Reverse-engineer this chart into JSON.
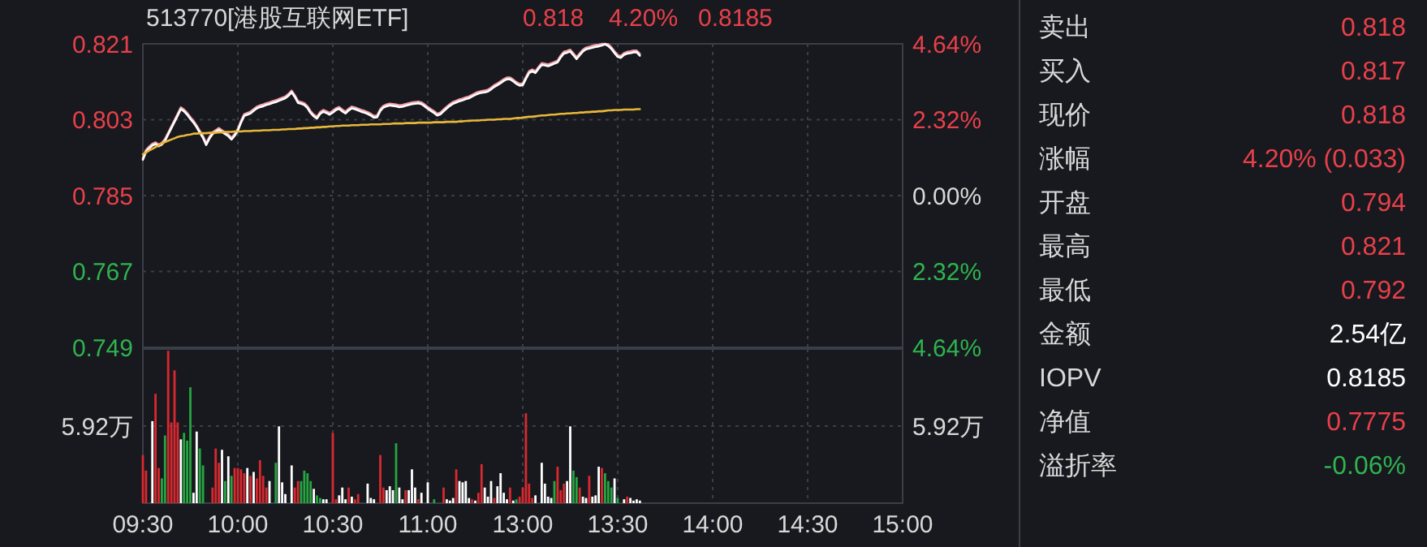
{
  "chart_data": [
    {
      "type": "line",
      "title": "513770[港股互联网ETF]",
      "annotations": [
        "0.818",
        "4.20%",
        "0.8185"
      ],
      "categories": [
        null,
        null,
        null,
        null,
        null,
        null,
        null,
        null,
        null,
        null,
        null,
        null,
        null,
        null,
        null,
        null,
        null,
        null,
        null,
        null,
        null,
        null,
        null,
        null,
        null,
        null,
        null,
        null,
        null,
        null,
        null,
        null,
        null,
        null,
        null,
        null,
        null,
        null,
        null,
        null,
        null,
        null,
        null,
        null,
        null,
        null,
        null,
        null,
        null,
        null,
        null,
        null,
        null,
        null,
        null,
        null,
        null,
        null,
        null,
        null,
        null,
        null,
        null,
        null,
        null,
        null,
        null,
        null,
        null,
        null,
        null,
        null,
        null,
        null,
        null,
        null,
        null,
        null,
        null,
        null,
        null,
        null,
        null,
        null,
        null,
        null,
        null,
        null,
        null,
        null,
        null,
        null,
        null,
        null,
        null,
        null,
        null,
        null,
        null,
        null,
        null,
        null,
        null,
        null,
        null,
        null,
        null,
        null,
        null,
        null,
        null,
        null,
        null,
        null,
        null,
        null,
        null,
        null,
        null,
        null,
        null,
        null,
        null,
        null,
        null,
        null,
        null,
        null,
        null,
        null,
        null,
        null,
        null,
        null,
        null,
        null,
        null,
        null,
        null,
        null,
        null,
        null,
        null,
        null,
        null,
        null,
        null,
        null,
        null,
        null,
        null,
        null,
        null,
        null,
        null,
        null,
        null,
        null,
        null,
        null,
        null,
        null,
        null,
        null,
        null,
        null,
        null,
        null,
        null,
        null,
        null,
        null,
        null,
        null,
        null,
        null,
        null,
        null,
        null,
        null,
        null,
        null,
        null,
        null,
        null,
        null,
        null,
        null,
        null,
        null,
        null,
        null,
        null,
        null,
        null,
        null,
        null,
        null,
        null,
        null,
        null,
        null,
        null,
        null,
        null,
        null,
        null,
        null,
        null,
        null,
        null,
        null,
        null,
        null,
        null,
        null,
        null,
        null,
        null,
        null,
        null,
        null,
        null,
        null,
        null,
        null,
        null,
        null,
        null,
        null,
        null,
        null,
        null,
        null,
        null,
        null,
        null,
        null,
        null,
        null,
        null
      ],
      "ylim": [
        0.749,
        0.821
      ],
      "yticks": [
        0.749,
        0.767,
        0.785,
        0.803,
        0.821
      ],
      "y2lim": [
        -4.64,
        4.64
      ],
      "y2ticks": [
        {
          "value": -4.64,
          "label": "4.64%"
        },
        {
          "value": -2.32,
          "label": "2.32%"
        },
        {
          "value": 0,
          "label": "0.00%"
        },
        {
          "value": 2.32,
          "label": "2.32%"
        },
        {
          "value": 4.64,
          "label": "4.64%"
        }
      ],
      "tick_labels": "y",
      "grid": true,
      "series": [
        {
          "color": "#f4a0a8",
          "values": [
            0.7939,
            0.7958,
            0.7966,
            0.7973,
            0.7976,
            0.7971,
            0.7975,
            0.7984,
            0.7999,
            0.8014,
            0.8029,
            0.8044,
            0.8059,
            0.8054,
            0.8046,
            0.8036,
            0.8027,
            0.8016,
            0.8003,
            0.7991,
            0.7974,
            0.7989,
            0.8,
            0.8005,
            0.801,
            0.8005,
            0.8,
            0.7995,
            0.7987,
            0.7996,
            0.8008,
            0.8027,
            0.8043,
            0.8046,
            0.8049,
            0.8055,
            0.8061,
            0.8064,
            0.8066,
            0.8069,
            0.8071,
            0.8074,
            0.8076,
            0.8079,
            0.8082,
            0.8085,
            0.8091,
            0.8099,
            0.8088,
            0.8074,
            0.8072,
            0.8069,
            0.8062,
            0.805,
            0.8042,
            0.8037,
            0.8048,
            0.8053,
            0.805,
            0.8046,
            0.8051,
            0.8057,
            0.806,
            0.8054,
            0.8049,
            0.8056,
            0.8061,
            0.8059,
            0.8056,
            0.8053,
            0.8051,
            0.8048,
            0.8044,
            0.8039,
            0.804,
            0.8055,
            0.8063,
            0.8066,
            0.8068,
            0.8067,
            0.8066,
            0.8064,
            0.8065,
            0.8067,
            0.8069,
            0.8071,
            0.8072,
            0.8073,
            0.8071,
            0.8066,
            0.806,
            0.8055,
            0.805,
            0.8044,
            0.8047,
            0.8054,
            0.8061,
            0.8067,
            0.8072,
            0.8075,
            0.8078,
            0.808,
            0.8083,
            0.8085,
            0.8089,
            0.8093,
            0.8096,
            0.8098,
            0.8099,
            0.8101,
            0.8106,
            0.8112,
            0.8116,
            0.8121,
            0.8126,
            0.813,
            0.813,
            0.8125,
            0.8119,
            0.8115,
            0.8116,
            0.8131,
            0.8145,
            0.8149,
            0.8145,
            0.8155,
            0.8164,
            0.8163,
            0.8161,
            0.8164,
            0.8167,
            0.817,
            0.8182,
            0.8191,
            0.8193,
            0.8196,
            0.8187,
            0.8178,
            0.8187,
            0.8196,
            0.8201,
            0.8203,
            0.8205,
            0.8207,
            0.8208,
            0.821,
            0.821,
            0.8209,
            0.8202,
            0.8192,
            0.8183,
            0.8181,
            0.8188,
            0.8191,
            0.8192,
            0.8194,
            0.8194,
            0.8186,
            null,
            null,
            null,
            null,
            null,
            null,
            null,
            null,
            null,
            null,
            null,
            null,
            null,
            null,
            null,
            null,
            null,
            null,
            null,
            null,
            null,
            null,
            null,
            null,
            null,
            null,
            null,
            null,
            null,
            null,
            null,
            null,
            null,
            null,
            null,
            null,
            null,
            null,
            null,
            null,
            null,
            null,
            null,
            null,
            null,
            null,
            null,
            null,
            null,
            null,
            null,
            null,
            null,
            null,
            null,
            null,
            null,
            null,
            null,
            null,
            null,
            null,
            null,
            null,
            null,
            null,
            null,
            null,
            null,
            null,
            null,
            null,
            null,
            null,
            null,
            null,
            null,
            null,
            null,
            null,
            null,
            null,
            null
          ]
        },
        {
          "color": "#ffffff",
          "values": [
            0.7935,
            0.7954,
            0.7962,
            0.7969,
            0.7972,
            0.7967,
            0.7971,
            0.798,
            0.7995,
            0.801,
            0.8025,
            0.804,
            0.8055,
            0.805,
            0.8042,
            0.8032,
            0.8023,
            0.8012,
            0.7999,
            0.7987,
            0.797,
            0.7985,
            0.7996,
            0.8001,
            0.8006,
            0.8001,
            0.7996,
            0.7991,
            0.7983,
            0.7992,
            0.8004,
            0.8023,
            0.8039,
            0.8042,
            0.8045,
            0.8051,
            0.8057,
            0.806,
            0.8062,
            0.8065,
            0.8067,
            0.807,
            0.8072,
            0.8075,
            0.8078,
            0.8081,
            0.8087,
            0.8095,
            0.8084,
            0.807,
            0.8068,
            0.8065,
            0.8058,
            0.8046,
            0.8038,
            0.8033,
            0.8044,
            0.8049,
            0.8046,
            0.8042,
            0.8047,
            0.8053,
            0.8056,
            0.805,
            0.8045,
            0.8052,
            0.8057,
            0.8055,
            0.8052,
            0.8049,
            0.8047,
            0.8044,
            0.804,
            0.8035,
            0.8036,
            0.8051,
            0.8059,
            0.8062,
            0.8064,
            0.8063,
            0.8062,
            0.806,
            0.8061,
            0.8063,
            0.8065,
            0.8067,
            0.8068,
            0.8069,
            0.8067,
            0.8062,
            0.8056,
            0.8051,
            0.8046,
            0.804,
            0.8043,
            0.805,
            0.8057,
            0.8063,
            0.8068,
            0.8071,
            0.8074,
            0.8076,
            0.8079,
            0.8081,
            0.8085,
            0.8089,
            0.8092,
            0.8094,
            0.8095,
            0.8097,
            0.8102,
            0.8108,
            0.8112,
            0.8117,
            0.8122,
            0.8126,
            0.8126,
            0.8121,
            0.8115,
            0.8111,
            0.8112,
            0.8127,
            0.8141,
            0.8145,
            0.8141,
            0.8151,
            0.816,
            0.8159,
            0.8157,
            0.816,
            0.8163,
            0.8166,
            0.8178,
            0.8187,
            0.8189,
            0.8192,
            0.8183,
            0.8174,
            0.8183,
            0.8192,
            0.8197,
            0.8199,
            0.8201,
            0.8203,
            0.8204,
            0.8206,
            0.8209,
            0.8205,
            0.8198,
            0.8188,
            0.8179,
            0.8177,
            0.8184,
            0.8187,
            0.8188,
            0.819,
            0.819,
            0.8182,
            null,
            null,
            null,
            null,
            null,
            null,
            null,
            null,
            null,
            null,
            null,
            null,
            null,
            null,
            null,
            null,
            null,
            null,
            null,
            null,
            null,
            null,
            null,
            null,
            null,
            null,
            null,
            null,
            null,
            null,
            null,
            null,
            null,
            null,
            null,
            null,
            null,
            null,
            null,
            null,
            null,
            null,
            null,
            null,
            null,
            null,
            null,
            null,
            null,
            null,
            null,
            null,
            null,
            null,
            null,
            null,
            null,
            null,
            null,
            null,
            null,
            null,
            null,
            null,
            null,
            null,
            null,
            null,
            null,
            null,
            null,
            null,
            null,
            null,
            null,
            null,
            null,
            null,
            null,
            null,
            null,
            null,
            null
          ]
        },
        {
          "color": "#e8b83a",
          "values": [
            0.7948,
            0.7952,
            0.7957,
            0.7961,
            0.7965,
            0.7969,
            0.7974,
            0.7977,
            0.798,
            0.7983,
            0.7986,
            0.7989,
            0.7991,
            0.7992,
            0.7994,
            0.7995,
            0.7997,
            0.7997,
            0.7998,
            0.7998,
            0.7998,
            0.7999,
            0.7999,
            0.7999,
            0.8,
            0.8,
            0.8001,
            0.8001,
            0.8001,
            0.8002,
            0.8002,
            0.8002,
            0.8003,
            0.8003,
            0.8003,
            0.8004,
            0.8004,
            0.8004,
            0.8005,
            0.8005,
            0.8005,
            0.8006,
            0.8006,
            0.8006,
            0.8007,
            0.8007,
            0.8008,
            0.8008,
            0.8008,
            0.8009,
            0.8009,
            0.801,
            0.801,
            0.8011,
            0.8011,
            0.8012,
            0.8012,
            0.8013,
            0.8013,
            0.8014,
            0.8014,
            0.8015,
            0.8015,
            0.8016,
            0.8016,
            0.8016,
            0.8017,
            0.8017,
            0.8017,
            0.8018,
            0.8018,
            0.8018,
            0.8019,
            0.8019,
            0.8019,
            0.8019,
            0.802,
            0.802,
            0.802,
            0.8021,
            0.8021,
            0.8021,
            0.8021,
            0.8022,
            0.8022,
            0.8022,
            0.8022,
            0.8023,
            0.8023,
            0.8023,
            0.8023,
            0.8023,
            0.8024,
            0.8024,
            0.8024,
            0.8024,
            0.8025,
            0.8025,
            0.8025,
            0.8025,
            0.8026,
            0.8026,
            0.8027,
            0.8027,
            0.8028,
            0.8028,
            0.8028,
            0.8029,
            0.8029,
            0.803,
            0.803,
            0.803,
            0.8031,
            0.8031,
            0.8032,
            0.8032,
            0.8032,
            0.8033,
            0.8034,
            0.8034,
            0.8035,
            0.8036,
            0.8037,
            0.8037,
            0.8038,
            0.8039,
            0.804,
            0.804,
            0.8041,
            0.8042,
            0.8042,
            0.8043,
            0.8044,
            0.8044,
            0.8045,
            0.8045,
            0.8046,
            0.8046,
            0.8047,
            0.8047,
            0.8048,
            0.8048,
            0.8049,
            0.8049,
            0.805,
            0.805,
            0.8051,
            0.8052,
            0.8052,
            0.8053,
            0.8053,
            0.8053,
            0.8054,
            0.8054,
            0.8054,
            0.8054,
            0.8055,
            0.8055,
            null,
            null,
            null,
            null,
            null,
            null,
            null,
            null,
            null,
            null,
            null,
            null,
            null,
            null,
            null,
            null,
            null,
            null,
            null,
            null,
            null,
            null,
            null,
            null,
            null,
            null,
            null,
            null,
            null,
            null,
            null,
            null,
            null,
            null,
            null,
            null,
            null,
            null,
            null,
            null,
            null,
            null,
            null,
            null,
            null,
            null,
            null,
            null,
            null,
            null,
            null,
            null,
            null,
            null,
            null,
            null,
            null,
            null,
            null,
            null,
            null,
            null,
            null,
            null,
            null,
            null,
            null,
            null,
            null,
            null,
            null,
            null,
            null,
            null,
            null,
            null,
            null,
            null,
            null,
            null,
            null,
            null,
            null
          ]
        }
      ]
    },
    {
      "type": "bar",
      "annotations": [
        "5.92万"
      ],
      "categories": [
        "09:30",
        null,
        null,
        null,
        null,
        null,
        null,
        null,
        null,
        null,
        null,
        null,
        null,
        null,
        null,
        null,
        null,
        null,
        null,
        null,
        null,
        null,
        null,
        null,
        null,
        null,
        null,
        null,
        null,
        null,
        "10:00",
        null,
        null,
        null,
        null,
        null,
        null,
        null,
        null,
        null,
        null,
        null,
        null,
        null,
        null,
        null,
        null,
        null,
        null,
        null,
        null,
        null,
        null,
        null,
        null,
        null,
        null,
        null,
        null,
        null,
        "10:30",
        null,
        null,
        null,
        null,
        null,
        null,
        null,
        null,
        null,
        null,
        null,
        null,
        null,
        null,
        null,
        null,
        null,
        null,
        null,
        null,
        null,
        null,
        null,
        null,
        null,
        null,
        null,
        null,
        null,
        "11:00",
        null,
        null,
        null,
        null,
        null,
        null,
        null,
        null,
        null,
        null,
        null,
        null,
        null,
        null,
        null,
        null,
        null,
        null,
        null,
        null,
        null,
        null,
        null,
        null,
        null,
        null,
        null,
        null,
        null,
        "13:00",
        null,
        null,
        null,
        null,
        null,
        null,
        null,
        null,
        null,
        null,
        null,
        null,
        null,
        null,
        null,
        null,
        null,
        null,
        null,
        null,
        null,
        null,
        null,
        null,
        null,
        null,
        null,
        null,
        null,
        "13:30",
        null,
        null,
        null,
        null,
        null,
        null,
        null,
        null,
        null,
        null,
        null,
        null,
        null,
        null,
        null,
        null,
        null,
        null,
        null,
        null,
        null,
        null,
        null,
        null,
        null,
        null,
        null,
        null,
        null,
        "14:00",
        null,
        null,
        null,
        null,
        null,
        null,
        null,
        null,
        null,
        null,
        null,
        null,
        null,
        null,
        null,
        null,
        null,
        null,
        null,
        null,
        null,
        null,
        null,
        null,
        null,
        null,
        null,
        null,
        null,
        "14:30",
        null,
        null,
        null,
        null,
        null,
        null,
        null,
        null,
        null,
        null,
        null,
        null,
        null,
        null,
        null,
        null,
        null,
        null,
        null,
        null,
        null,
        null,
        null,
        null,
        null,
        null,
        null,
        null,
        null,
        "15:00"
      ],
      "ylim": [
        0,
        11.84
      ],
      "yticks": [
        {
          "value": 0,
          "label": null
        },
        {
          "value": 5.92,
          "label": "5.92万"
        },
        {
          "value": 11.84,
          "label": null
        }
      ],
      "grid": true,
      "values": [
        3.7,
        2.5,
        null,
        6.3,
        8.4,
        2.7,
        1.9,
        5.2,
        11.7,
        6.2,
        10.2,
        6.2,
        4.9,
        5.4,
        4.8,
        8.9,
        0.8,
        5.5,
        4.2,
        2.9,
        null,
        null,
        1.2,
        4.2,
        3.1,
        4.1,
        1.7,
        3.6,
        2.1,
        2.7,
        2.7,
        2.6,
        2.3,
        2.7,
        2.1,
        2.4,
        1.9,
        3.3,
        2.1,
        1.2,
        1.7,
        null,
        3.1,
        5.9,
        1.6,
        0.7,
        null,
        2.9,
        1.2,
        1.7,
        1.7,
        2.5,
        2.3,
        1.7,
        1.1,
        0.6,
        0.4,
        0.3,
        0.3,
        null,
        5.4,
        0.3,
        0.6,
        1.2,
        0.3,
        1.2,
        0.5,
        0.3,
        0.7,
        null,
        null,
        1.5,
        0.4,
        0.3,
        null,
        3.7,
        1.2,
        1.0,
        1.3,
        1.0,
        4.6,
        1.2,
        0.3,
        1.0,
        1.0,
        2.6,
        1.2,
        0.3,
        0.8,
        null,
        1.6,
        null,
        0.3,
        null,
        null,
        1.2,
        0.3,
        0.2,
        0.4,
        2.6,
        1.7,
        1.6,
        1.7,
        0.4,
        0.3,
        0.2,
        0.8,
        3.0,
        1.2,
        0.5,
        1.7,
        0.4,
        1.3,
        2.3,
        0.8,
        0.3,
        1.2,
        0.2,
        0.3,
        0.5,
        1.2,
        6.9,
        1.5,
        0.4,
        0.6,
        null,
        3.1,
        1.5,
        0.5,
        0.4,
        1.7,
        2.8,
        1.0,
        1.5,
        1.7,
        5.9,
        2.5,
        2.0,
        1.2,
        0.5,
        0.4,
        2.1,
        0.5,
        0.6,
        2.8,
        2.7,
        2.3,
        1.7,
        1.2,
        1.9,
        0.4,
        null,
        0.3,
        0.5,
        0.4,
        0.2,
        0.3,
        0.2,
        null,
        null,
        null,
        null,
        null,
        null,
        null,
        null,
        null,
        null,
        null,
        null,
        null,
        null,
        null,
        null,
        null,
        null,
        null,
        null,
        null,
        null,
        null,
        null,
        null,
        null,
        null,
        null,
        null,
        null,
        null,
        null,
        null,
        null,
        null,
        null,
        null,
        null,
        null,
        null,
        null,
        null,
        null,
        null,
        null,
        null,
        null,
        null,
        null,
        null,
        null,
        null,
        null,
        null,
        null,
        null,
        null,
        null,
        null,
        null,
        null,
        null,
        null,
        null,
        null,
        null,
        null,
        null,
        null,
        null,
        null,
        null,
        null,
        null,
        null,
        null,
        null,
        null,
        null,
        null,
        null,
        null,
        null
      ],
      "colors": [
        "#d9282f",
        "#d9282f",
        null,
        "#ffffff",
        "#d9282f",
        "#d9282f",
        "#26a541",
        "#26a541",
        "#d9282f",
        "#d9282f",
        "#d9282f",
        "#d9282f",
        "#ffffff",
        "#26a541",
        "#26a541",
        "#26a541",
        "#ffffff",
        "#ffffff",
        "#26a541",
        "#26a541",
        null,
        null,
        "#d9282f",
        "#d9282f",
        "#d9282f",
        "#ffffff",
        "#26a541",
        "#ffffff",
        "#26a541",
        "#d9282f",
        "#d9282f",
        "#d9282f",
        "#d9282f",
        "#ffffff",
        "#d9282f",
        "#ffffff",
        "#d9282f",
        "#d9282f",
        "#d9282f",
        "#d9282f",
        "#ffffff",
        null,
        "#26a541",
        "#ffffff",
        "#ffffff",
        "#ffffff",
        null,
        "#ffffff",
        "#d9282f",
        "#d9282f",
        "#26a541",
        "#26a541",
        "#26a541",
        "#26a541",
        "#ffffff",
        "#26a541",
        "#26a541",
        "#ffffff",
        "#ffffff",
        null,
        "#d9282f",
        "#d9282f",
        "#ffffff",
        "#ffffff",
        "#ffffff",
        "#d9282f",
        "#ffffff",
        "#d9282f",
        "#d9282f",
        null,
        null,
        "#ffffff",
        "#ffffff",
        "#ffffff",
        null,
        "#d9282f",
        "#d9282f",
        "#ffffff",
        "#ffffff",
        "#ffffff",
        "#26a541",
        "#ffffff",
        "#ffffff",
        "#d9282f",
        "#ffffff",
        "#ffffff",
        "#ffffff",
        "#d9282f",
        "#ffffff",
        null,
        "#ffffff",
        null,
        "#26a541",
        null,
        null,
        "#d9282f",
        "#ffffff",
        "#ffffff",
        "#ffffff",
        "#d9282f",
        "#ffffff",
        "#ffffff",
        "#ffffff",
        "#ffffff",
        "#d9282f",
        "#ffffff",
        "#d9282f",
        "#d9282f",
        "#ffffff",
        "#ffffff",
        "#ffffff",
        "#d9282f",
        "#ffffff",
        "#ffffff",
        "#ffffff",
        "#ffffff",
        "#d9282f",
        "#ffffff",
        "#26a541",
        "#d9282f",
        "#d9282f",
        "#d9282f",
        "#d9282f",
        "#d9282f",
        "#ffffff",
        null,
        "#ffffff",
        "#ffffff",
        "#ffffff",
        "#ffffff",
        "#26a541",
        "#d9282f",
        "#d9282f",
        "#d9282f",
        "#ffffff",
        "#ffffff",
        "#26a541",
        "#26a541",
        "#d9282f",
        "#ffffff",
        "#ffffff",
        "#d9282f",
        "#ffffff",
        "#ffffff",
        "#ffffff",
        "#d9282f",
        "#26a541",
        "#26a541",
        "#26a541",
        "#ffffff",
        "#26a541",
        null,
        "#ffffff",
        "#d9282f",
        "#ffffff",
        "#ffffff",
        "#ffffff",
        "#ffffff",
        null,
        null,
        null,
        null,
        null,
        null,
        null,
        null,
        null,
        null,
        null,
        null,
        null,
        null,
        null,
        null,
        null,
        null,
        null,
        null,
        null,
        null,
        null,
        null,
        null,
        null,
        null,
        null,
        null,
        null,
        null,
        null,
        null,
        null,
        null,
        null,
        null,
        null,
        null,
        null,
        null,
        null,
        null,
        null,
        null,
        null,
        null,
        null,
        null,
        null,
        null,
        null,
        null,
        null,
        null,
        null,
        null,
        null,
        null,
        null,
        null,
        null,
        null,
        null,
        null,
        null,
        null,
        null,
        null,
        null,
        null,
        null,
        null,
        null,
        null,
        null,
        null,
        null,
        null,
        null,
        null,
        null,
        null
      ]
    },
    {
      "type": "other",
      "categories": [
        "卖出",
        "买入",
        "现价",
        "涨幅",
        "开盘",
        "最高",
        "最低",
        "金额",
        "IOPV",
        "净值",
        "溢折率"
      ],
      "value_labels": [
        "0.818",
        "0.817",
        "0.818",
        "4.20% (0.033)",
        "0.794",
        "0.821",
        "0.792",
        "2.54亿",
        "0.8185",
        "0.7775",
        "-0.06%"
      ],
      "colors": [
        "#e8404a",
        "#e8404a",
        "#e8404a",
        "#e8404a",
        "#e8404a",
        "#e8404a",
        "#e8404a",
        "#ffffff",
        "#ffffff",
        "#e8404a",
        "#2fb34f"
      ]
    }
  ]
}
